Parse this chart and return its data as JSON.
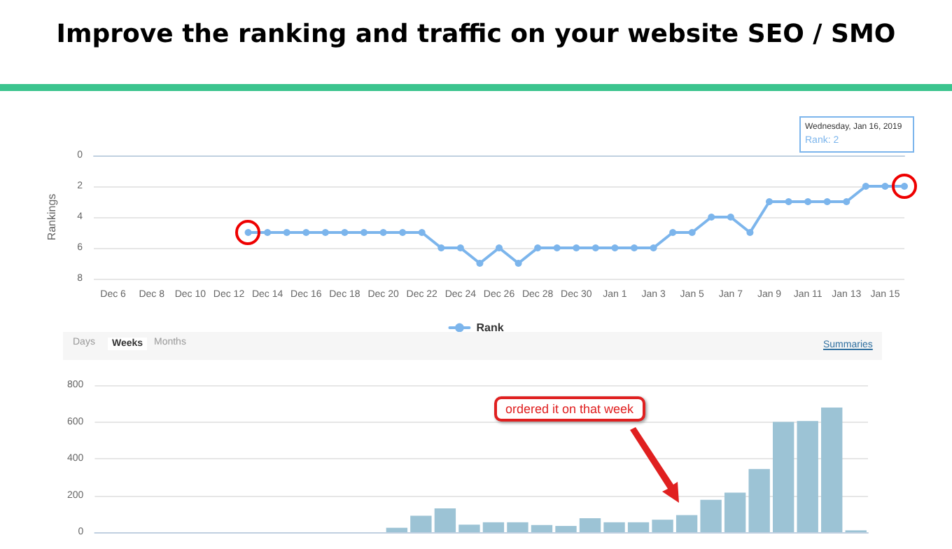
{
  "chart_data": [
    {
      "type": "line",
      "title": "Improve the ranking and traffic on your website SEO / SMO",
      "ylabel": "Rankings",
      "categories": [
        null,
        "Dec 6",
        null,
        "Dec 8",
        null,
        "Dec 10",
        null,
        "Dec 12",
        null,
        "Dec 14",
        null,
        "Dec 16",
        null,
        "Dec 18",
        null,
        "Dec 20",
        null,
        "Dec 22",
        null,
        "Dec 24",
        null,
        "Dec 26",
        null,
        "Dec 28",
        null,
        "Dec 30",
        null,
        "Jan 1",
        null,
        "Jan 3",
        null,
        "Jan 5",
        null,
        "Jan 7",
        null,
        "Jan 9",
        null,
        "Jan 11",
        null,
        "Jan 13",
        null,
        "Jan 15",
        null
      ],
      "series": [
        {
          "name": "Rank",
          "color": "#7cb5ec",
          "values": [
            null,
            null,
            null,
            null,
            null,
            null,
            null,
            null,
            5,
            5,
            5,
            5,
            5,
            5,
            5,
            5,
            5,
            5,
            6,
            6,
            7,
            6,
            7,
            6,
            6,
            6,
            6,
            6,
            6,
            6,
            5,
            5,
            4,
            4,
            5,
            3,
            3,
            3,
            3,
            3,
            2,
            2,
            2
          ]
        }
      ],
      "ylim": [
        8,
        0
      ],
      "yticks": [
        0,
        2,
        4,
        6,
        8
      ],
      "grid": "y",
      "legend": "bottom",
      "marker": "circle",
      "annotations": [
        "Wednesday, Jan 16, 2019",
        "Rank: 2"
      ]
    },
    {
      "type": "bar",
      "categories": [
        null,
        null,
        null,
        null,
        null,
        null,
        null,
        null,
        null,
        null,
        null,
        null,
        null,
        null,
        null,
        null,
        null,
        null,
        null,
        null,
        null,
        null,
        null,
        null,
        null,
        null,
        null,
        null,
        null,
        null,
        null,
        null
      ],
      "values": [
        null,
        0,
        null,
        0,
        null,
        0,
        null,
        0,
        null,
        0,
        null,
        0,
        24,
        90,
        130,
        41,
        54,
        54,
        39,
        34,
        76,
        54,
        54,
        68,
        93,
        176,
        215,
        344,
        600,
        605,
        678,
        10
      ],
      "color": "#9cc3d5",
      "ylim": [
        0,
        800
      ],
      "yticks": [
        0,
        200,
        400,
        600,
        800
      ],
      "grid": "y",
      "annotations": [
        "Days",
        "Weeks",
        "Months",
        "Summaries",
        "ordered it on that week"
      ]
    }
  ]
}
